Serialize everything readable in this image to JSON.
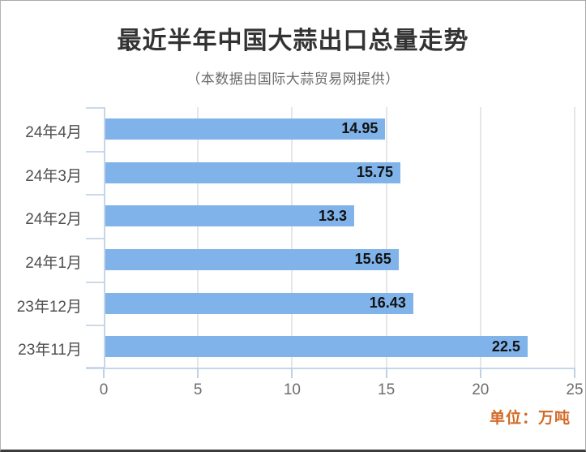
{
  "chart_data": {
    "type": "bar",
    "orientation": "horizontal",
    "title": "最近半年中国大蒜出口总量走势",
    "subtitle": "（本数据由国际大蒜贸易网提供）",
    "categories": [
      "24年4月",
      "24年3月",
      "24年2月",
      "24年1月",
      "23年12月",
      "23年11月"
    ],
    "values": [
      14.95,
      15.75,
      13.3,
      15.65,
      16.43,
      22.5
    ],
    "value_labels": [
      "14.95",
      "15.75",
      "13.3",
      "15.65",
      "16.43",
      "22.5"
    ],
    "x_ticks": [
      0,
      5,
      10,
      15,
      20,
      25
    ],
    "xlim": [
      0,
      25
    ],
    "grid": true,
    "legend": "none",
    "xlabel": "",
    "ylabel": "",
    "unit_label": "单位：万吨",
    "colors": {
      "bar": "#7FB3E9",
      "value_text": "#111111",
      "axis": "#c7d5e9",
      "gridline": "#e6e6e6",
      "unit_text": "#d26a26",
      "title_text": "#333333",
      "subtitle_text": "#6b6b6b"
    }
  }
}
